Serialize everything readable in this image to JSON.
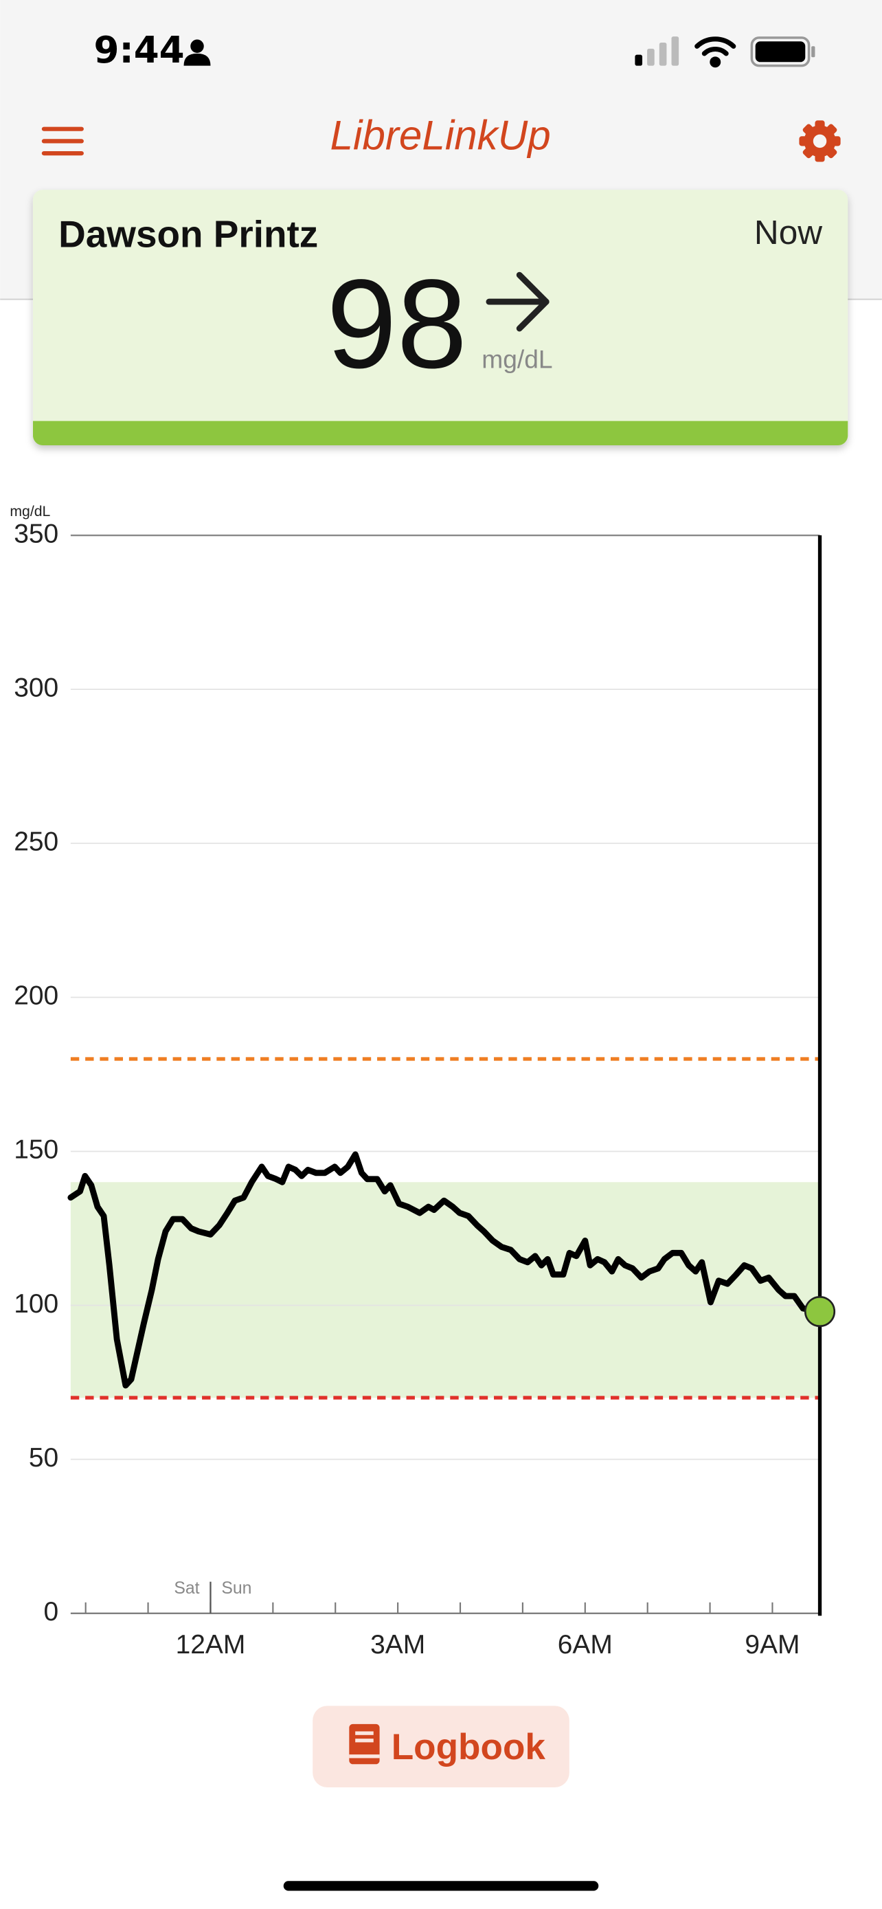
{
  "status_bar": {
    "time": "9:44"
  },
  "header": {
    "title": "LibreLinkUp"
  },
  "reading_card": {
    "name": "Dawson Printz",
    "time": "Now",
    "value": 98,
    "unit": "mg/dL"
  },
  "chart_data": {
    "type": "line",
    "y_unit": "mg/dL",
    "x": [
      -2.24,
      -2.09,
      -2.01,
      -1.91,
      -1.81,
      -1.71,
      -1.62,
      -1.5,
      -1.36,
      -1.27,
      -1.17,
      -1.07,
      -0.94,
      -0.84,
      -0.72,
      -0.6,
      -0.45,
      -0.31,
      -0.19,
      0,
      0.14,
      0.27,
      0.39,
      0.53,
      0.66,
      0.82,
      0.92,
      1.05,
      1.15,
      1.25,
      1.36,
      1.46,
      1.56,
      1.69,
      1.83,
      1.99,
      2.08,
      2.2,
      2.32,
      2.42,
      2.51,
      2.67,
      2.79,
      2.88,
      3.02,
      3.16,
      3.35,
      3.49,
      3.58,
      3.74,
      3.88,
      3.99,
      4.13,
      4.27,
      4.38,
      4.52,
      4.66,
      4.81,
      4.95,
      5.08,
      5.2,
      5.3,
      5.4,
      5.49,
      5.65,
      5.75,
      5.86,
      6,
      6.08,
      6.2,
      6.31,
      6.43,
      6.53,
      6.64,
      6.76,
      6.9,
      7.03,
      7.17,
      7.27,
      7.4,
      7.54,
      7.66,
      7.77,
      7.87,
      8.01,
      8.14,
      8.28,
      8.42,
      8.55,
      8.67,
      8.81,
      8.94,
      9.1,
      9.21,
      9.35,
      9.49,
      9.76
    ],
    "series": [
      {
        "color": "#000000",
        "values": [
          135,
          137,
          142,
          139,
          132,
          129,
          113,
          89,
          74,
          76,
          85,
          94,
          105,
          115,
          124,
          128,
          128,
          125,
          124,
          123,
          126,
          130,
          134,
          135,
          140,
          145,
          142,
          141,
          140,
          145,
          144,
          142,
          144,
          143,
          143,
          145,
          143,
          145,
          149,
          143,
          141,
          141,
          137,
          139,
          133,
          132,
          130,
          132,
          131,
          134,
          132,
          130,
          129,
          126,
          124,
          121,
          119,
          118,
          115,
          114,
          116,
          113,
          115,
          110,
          110,
          117,
          116,
          121,
          113,
          115,
          114,
          111,
          115,
          113,
          112,
          109,
          111,
          112,
          115,
          117,
          117,
          113,
          111,
          114,
          101,
          108,
          107,
          110,
          113,
          112,
          108,
          109,
          105,
          103,
          103,
          99,
          98
        ]
      }
    ],
    "xlim": [
      -2.24,
      9.76
    ],
    "ylim": [
      0,
      350
    ],
    "yticks": [
      0,
      50,
      100,
      150,
      200,
      250,
      300,
      350
    ],
    "xticks": [
      {
        "value": 0,
        "label": "12AM"
      },
      {
        "value": 3,
        "label": "3AM"
      },
      {
        "value": 6,
        "label": "6AM"
      },
      {
        "value": 9,
        "label": "9AM"
      }
    ],
    "xminorticks": [
      -2,
      -1,
      1,
      2,
      4,
      5,
      7,
      8
    ],
    "grid": true,
    "target_range": [
      70,
      140
    ],
    "target_color": "#e6f3d8",
    "high_line": 180,
    "high_color": "#ef7d22",
    "low_line": 70,
    "low_color": "#e0302a",
    "current_color": "#8dc63f",
    "day_divider": {
      "x": 0,
      "before": "Sat",
      "after": "Sun"
    }
  },
  "logbook_button": {
    "label": "Logbook"
  }
}
